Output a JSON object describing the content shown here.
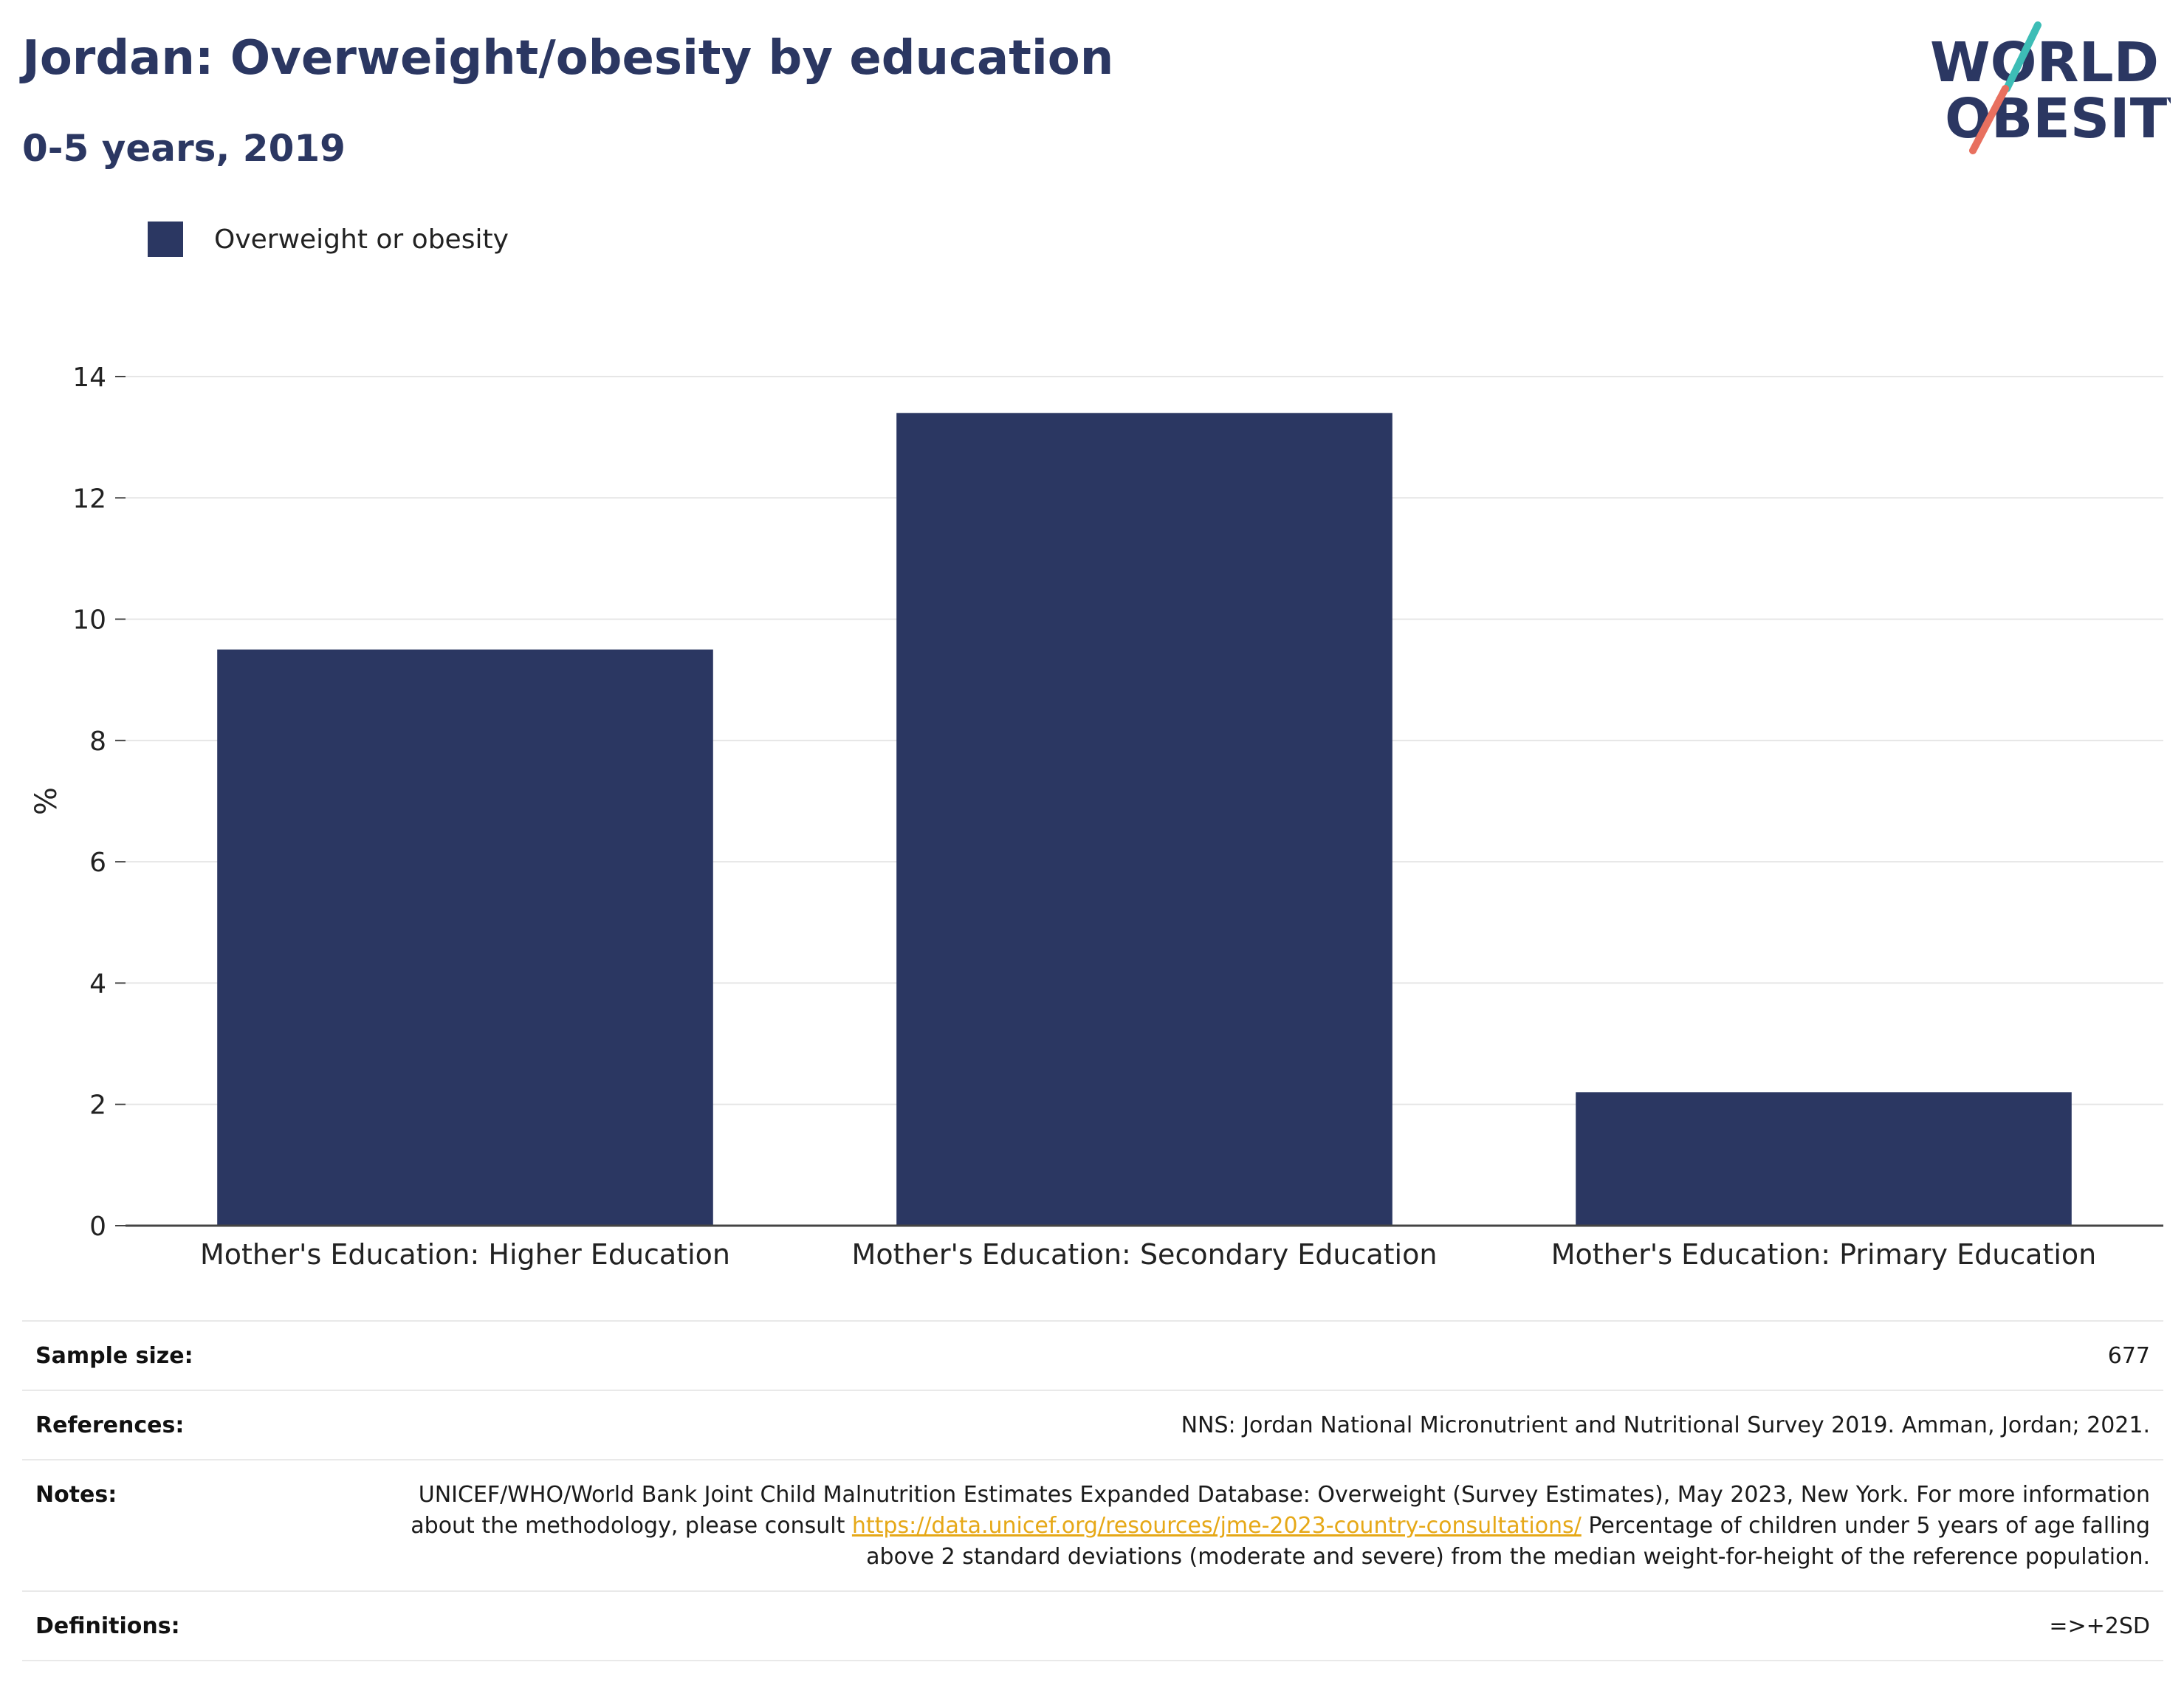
{
  "header": {
    "title": "Jordan: Overweight/obesity by education",
    "subtitle": "0-5 years, 2019"
  },
  "logo": {
    "line1": "WORLD",
    "line2": "OBESITY"
  },
  "colors": {
    "bar": "#2b3762",
    "title": "#2b3762",
    "grid": "#e6e6e6",
    "link": "#e6a817",
    "logo_teal": "#3dbdb6",
    "logo_coral": "#e8705f"
  },
  "chart_data": {
    "type": "bar",
    "categories": [
      "Mother's Education: Higher Education",
      "Mother's Education: Secondary Education",
      "Mother's Education: Primary Education"
    ],
    "series": [
      {
        "name": "Overweight or obesity",
        "values": [
          9.5,
          13.4,
          2.2
        ]
      }
    ],
    "ylabel": "%",
    "ylim": [
      0,
      14
    ],
    "yticks": [
      0,
      2,
      4,
      6,
      8,
      10,
      12,
      14
    ],
    "grid": true,
    "legend_position": "top-left"
  },
  "info": {
    "sample_size_label": "Sample size:",
    "sample_size_value": "677",
    "references_label": "References:",
    "references_value": "NNS: Jordan National Micronutrient and Nutritional Survey 2019. Amman, Jordan; 2021.",
    "notes_label": "Notes:",
    "notes_text_1": "UNICEF/WHO/World Bank Joint Child Malnutrition Estimates Expanded Database: Overweight (Survey Estimates), May 2023, New York. For more information about the methodology, please consult",
    "notes_link": "https://data.unicef.org/resources/jme-2023-country-consultations/",
    "notes_text_2": "Percentage of children under 5 years of age falling above 2 standard deviations (moderate and severe) from the median weight-for-height of the reference population.",
    "definitions_label": "Definitions:",
    "definitions_value": "=>+2SD"
  }
}
